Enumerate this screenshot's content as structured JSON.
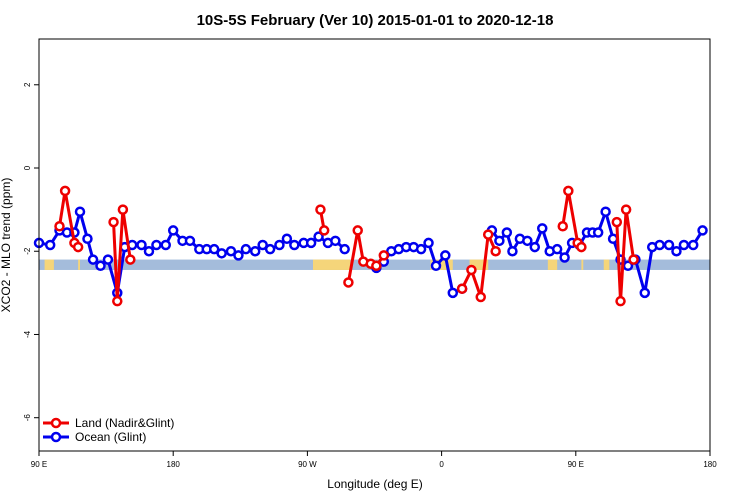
{
  "chart_data": {
    "type": "line",
    "title": "10S-5S February (Ver 10)   2015-01-01 to 2020-12-18",
    "xlabel": "Longitude (deg E)",
    "ylabel": "XCO2 - MLO trend (ppm)",
    "xlim": [
      90,
      450
    ],
    "ylim": [
      -6.8,
      3.1
    ],
    "x_ticks": [
      {
        "value": 90,
        "label": "90 E"
      },
      {
        "value": 162,
        "label": "180"
      },
      {
        "value": 234,
        "label": "90 W"
      },
      {
        "value": 306,
        "label": "0"
      },
      {
        "value": 378,
        "label": "90 E"
      },
      {
        "value": 450,
        "label": "180"
      }
    ],
    "y_ticks": [
      {
        "value": 2,
        "label": "2"
      },
      {
        "value": 0,
        "label": "0"
      },
      {
        "value": -2,
        "label": "-2"
      },
      {
        "value": -4,
        "label": "-4"
      },
      {
        "value": -6,
        "label": "-6"
      }
    ],
    "grid": false,
    "legend_position": "bottom-left",
    "land_band": {
      "y_min": -2.45,
      "y_max": -2.2,
      "land_color": "#f5d57a",
      "ocean_color": "#a4bcdb"
    },
    "land_segments": [
      [
        93,
        98
      ],
      [
        111,
        112
      ],
      [
        237,
        257
      ],
      [
        300,
        312
      ],
      [
        321,
        331
      ],
      [
        363,
        368
      ],
      [
        381,
        382
      ],
      [
        393,
        396
      ]
    ],
    "series": [
      {
        "name": "Land (Nadir&Glint)",
        "color": "#ee0000",
        "segments": [
          [
            [
              101,
              -1.4
            ],
            [
              104,
              -0.55
            ],
            [
              109,
              -1.8
            ]
          ],
          [
            [
              111,
              -1.9
            ]
          ],
          [
            [
              130,
              -1.3
            ],
            [
              132,
              -3.2
            ],
            [
              135,
              -1.0
            ],
            [
              139,
              -2.2
            ]
          ],
          [
            [
              241,
              -1.0
            ],
            [
              243,
              -1.5
            ]
          ],
          [
            [
              256,
              -2.75
            ],
            [
              261,
              -1.5
            ],
            [
              264,
              -2.25
            ],
            [
              268,
              -2.3
            ],
            [
              271,
              -2.35
            ],
            [
              275,
              -2.1
            ]
          ],
          [
            [
              317,
              -2.9
            ],
            [
              322,
              -2.45
            ],
            [
              327,
              -3.1
            ],
            [
              331,
              -1.6
            ],
            [
              335,
              -2.0
            ]
          ],
          [
            [
              371,
              -1.4
            ],
            [
              374,
              -0.55
            ],
            [
              379,
              -1.8
            ]
          ],
          [
            [
              381,
              -1.9
            ]
          ],
          [
            [
              400,
              -1.3
            ],
            [
              402,
              -3.2
            ],
            [
              405,
              -1.0
            ],
            [
              409,
              -2.2
            ]
          ]
        ]
      },
      {
        "name": "Ocean (Glint)",
        "color": "#0000ee",
        "segments": [
          [
            [
              90,
              -1.8
            ],
            [
              96,
              -1.85
            ],
            [
              101,
              -1.5
            ],
            [
              105,
              -1.55
            ],
            [
              109,
              -1.55
            ],
            [
              112,
              -1.05
            ],
            [
              116,
              -1.7
            ],
            [
              119,
              -2.2
            ],
            [
              123,
              -2.35
            ],
            [
              127,
              -2.2
            ],
            [
              132,
              -3.0
            ],
            [
              136,
              -1.9
            ],
            [
              140,
              -1.85
            ],
            [
              145,
              -1.85
            ],
            [
              149,
              -2.0
            ],
            [
              153,
              -1.85
            ],
            [
              158,
              -1.85
            ],
            [
              162,
              -1.5
            ],
            [
              167,
              -1.75
            ],
            [
              171,
              -1.75
            ],
            [
              176,
              -1.95
            ],
            [
              180,
              -1.95
            ],
            [
              184,
              -1.95
            ],
            [
              188,
              -2.05
            ],
            [
              193,
              -2.0
            ],
            [
              197,
              -2.1
            ],
            [
              201,
              -1.95
            ],
            [
              206,
              -2.0
            ],
            [
              210,
              -1.85
            ],
            [
              214,
              -1.95
            ],
            [
              219,
              -1.85
            ],
            [
              223,
              -1.7
            ],
            [
              227,
              -1.85
            ],
            [
              232,
              -1.8
            ],
            [
              236,
              -1.8
            ],
            [
              240,
              -1.65
            ],
            [
              245,
              -1.8
            ],
            [
              249,
              -1.75
            ],
            [
              254,
              -1.95
            ]
          ],
          [
            [
              271,
              -2.4
            ],
            [
              275,
              -2.25
            ],
            [
              279,
              -2.0
            ],
            [
              283,
              -1.95
            ],
            [
              287,
              -1.9
            ],
            [
              291,
              -1.9
            ],
            [
              295,
              -1.95
            ],
            [
              299,
              -1.8
            ],
            [
              303,
              -2.35
            ],
            [
              308,
              -2.1
            ],
            [
              312,
              -3.0
            ],
            [
              317,
              -2.9
            ]
          ],
          [
            [
              333,
              -1.5
            ],
            [
              337,
              -1.75
            ],
            [
              341,
              -1.55
            ],
            [
              344,
              -2.0
            ],
            [
              348,
              -1.7
            ],
            [
              352,
              -1.75
            ],
            [
              356,
              -1.9
            ],
            [
              360,
              -1.45
            ],
            [
              364,
              -2.0
            ],
            [
              368,
              -1.95
            ],
            [
              372,
              -2.15
            ],
            [
              376,
              -1.8
            ],
            [
              380,
              -1.85
            ],
            [
              384,
              -1.55
            ],
            [
              387,
              -1.55
            ],
            [
              390,
              -1.55
            ],
            [
              394,
              -1.05
            ],
            [
              398,
              -1.7
            ],
            [
              402,
              -2.2
            ],
            [
              406,
              -2.35
            ],
            [
              410,
              -2.2
            ],
            [
              415,
              -3.0
            ],
            [
              419,
              -1.9
            ],
            [
              423,
              -1.85
            ],
            [
              428,
              -1.85
            ],
            [
              432,
              -2.0
            ],
            [
              436,
              -1.85
            ],
            [
              441,
              -1.85
            ],
            [
              446,
              -1.5
            ]
          ]
        ]
      }
    ]
  }
}
